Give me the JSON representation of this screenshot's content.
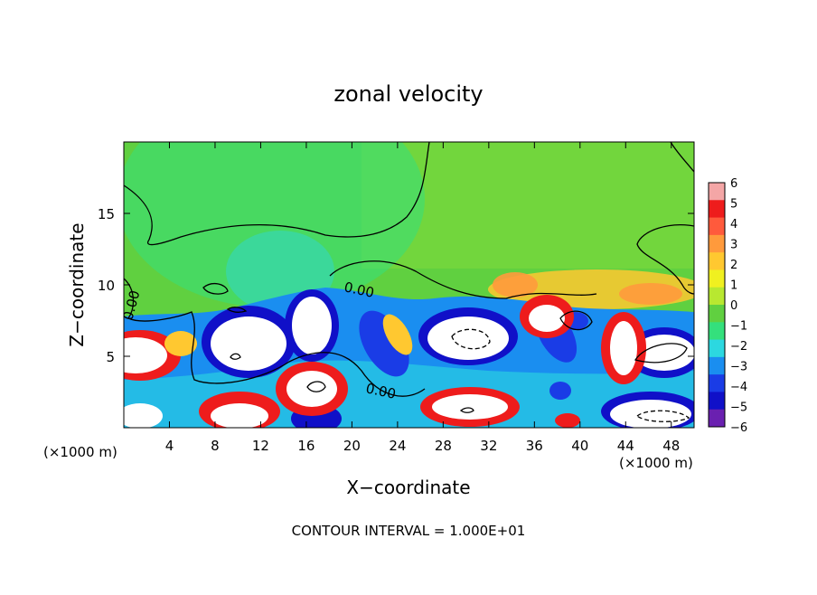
{
  "chart_data": {
    "type": "heatmap",
    "title": "zonal velocity",
    "xlabel": "X−coordinate",
    "ylabel": "Z−coordinate",
    "x_unit_left": "(×1000 m)",
    "x_unit_right": "(×1000 m)",
    "xlim": [
      0,
      50
    ],
    "ylim": [
      0,
      20
    ],
    "x_ticks": [
      4,
      8,
      12,
      16,
      20,
      24,
      28,
      32,
      36,
      40,
      44,
      48
    ],
    "y_ticks": [
      5,
      10,
      15
    ],
    "contour_labels": [
      "0.00",
      "0.00",
      "0.00"
    ],
    "footer": "CONTOUR INTERVAL = 1.000E+01",
    "colorbar": {
      "ticks": [
        "6",
        "5",
        "4",
        "3",
        "2",
        "1",
        "0",
        "−1",
        "−2",
        "−3",
        "−4",
        "−5",
        "−6"
      ],
      "colors": [
        "#f4a6a6",
        "#ee1c1c",
        "#ff5a3c",
        "#ff9a3c",
        "#ffc830",
        "#f0f020",
        "#b8e830",
        "#60d040",
        "#34e07c",
        "#2cd8e0",
        "#1a8ef0",
        "#1a3ce6",
        "#1010c8",
        "#6a20b0"
      ]
    }
  }
}
